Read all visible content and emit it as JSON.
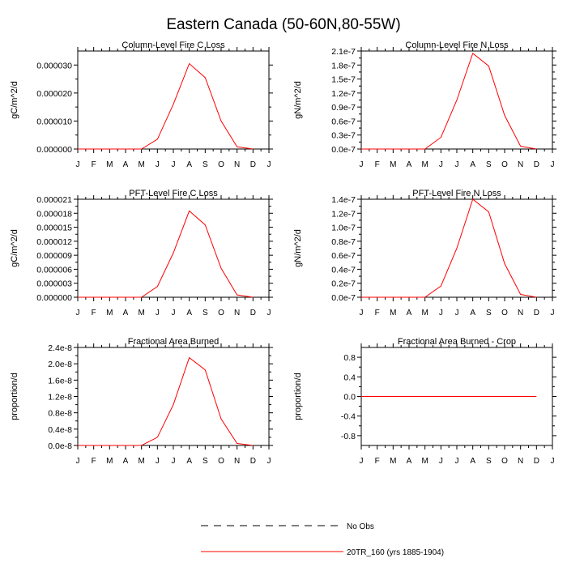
{
  "title": "Eastern Canada (50-60N,80-55W)",
  "months": [
    "J",
    "F",
    "M",
    "A",
    "M",
    "J",
    "J",
    "A",
    "S",
    "O",
    "N",
    "D",
    "J"
  ],
  "legend": [
    {
      "label": "No Obs",
      "style": "dashed",
      "color": "#000000"
    },
    {
      "label": "20TR_160 (yrs 1885-1904)",
      "style": "solid",
      "color": "#ff0000"
    }
  ],
  "colors": {
    "series": "#ff0000",
    "axis": "#000000"
  },
  "chart_data": [
    {
      "type": "line",
      "title": "Column-Level Fire C Loss",
      "ylabel": "gC/m^2/d",
      "ylim": [
        0,
        3.5e-05
      ],
      "yticks": [
        0,
        1e-05,
        2e-05,
        3e-05
      ],
      "ytick_labels": [
        "0.000000",
        "0.000010",
        "0.000020",
        "0.000030"
      ],
      "series": [
        {
          "name": "20TR_160 (yrs 1885-1904)",
          "values": [
            0,
            0,
            0,
            0,
            0,
            3.5e-06,
            1.6e-05,
            3.05e-05,
            2.55e-05,
            1e-05,
            8e-07,
            0
          ]
        }
      ]
    },
    {
      "type": "line",
      "title": "Column-Level Fire N Loss",
      "ylabel": "gN/m^2/d",
      "ylim": [
        0,
        2.1e-07
      ],
      "yticks": [
        0,
        3e-08,
        6e-08,
        9e-08,
        1.2e-07,
        1.5e-07,
        1.8e-07,
        2.1e-07
      ],
      "ytick_labels": [
        "0.0e-7",
        "0.3e-7",
        "0.6e-7",
        "0.9e-7",
        "1.2e-7",
        "1.5e-7",
        "1.8e-7",
        "2.1e-7"
      ],
      "series": [
        {
          "name": "20TR_160 (yrs 1885-1904)",
          "values": [
            0,
            0,
            0,
            0,
            0,
            2.5e-08,
            1.05e-07,
            2.05e-07,
            1.78e-07,
            7.2e-08,
            6e-09,
            0
          ]
        }
      ]
    },
    {
      "type": "line",
      "title": "PFT-Level Fire C Loss",
      "ylabel": "gC/m^2/d",
      "ylim": [
        0,
        2.1e-05
      ],
      "yticks": [
        0,
        3e-06,
        6e-06,
        9e-06,
        1.2e-05,
        1.5e-05,
        1.8e-05,
        2.1e-05
      ],
      "ytick_labels": [
        "0.000000",
        "0.000003",
        "0.000006",
        "0.000009",
        "0.000012",
        "0.000015",
        "0.000018",
        "0.000021"
      ],
      "series": [
        {
          "name": "20TR_160 (yrs 1885-1904)",
          "values": [
            0,
            0,
            0,
            0,
            0,
            2.3e-06,
            9.5e-06,
            1.85e-05,
            1.55e-05,
            6.2e-06,
            5e-07,
            0
          ]
        }
      ]
    },
    {
      "type": "line",
      "title": "PFT-Level Fire N Loss",
      "ylabel": "gN/m^2/d",
      "ylim": [
        0,
        1.4e-07
      ],
      "yticks": [
        0,
        2e-08,
        4e-08,
        6e-08,
        8e-08,
        1e-07,
        1.2e-07,
        1.4e-07
      ],
      "ytick_labels": [
        "0.0e-7",
        "0.2e-7",
        "0.4e-7",
        "0.6e-7",
        "0.8e-7",
        "1.0e-7",
        "1.2e-7",
        "1.4e-7"
      ],
      "series": [
        {
          "name": "20TR_160 (yrs 1885-1904)",
          "values": [
            0,
            0,
            0,
            0,
            0,
            1.6e-08,
            7e-08,
            1.4e-07,
            1.22e-07,
            4.8e-08,
            4e-09,
            0
          ]
        }
      ]
    },
    {
      "type": "line",
      "title": "Fractional Area Burned",
      "ylabel": "proportion/d",
      "ylim": [
        0,
        2.4e-08
      ],
      "yticks": [
        0,
        4e-09,
        8e-09,
        1.2e-08,
        1.6e-08,
        2e-08,
        2.4e-08
      ],
      "ytick_labels": [
        "0.0e-8",
        "0.4e-8",
        "0.8e-8",
        "1.2e-8",
        "1.6e-8",
        "2.0e-8",
        "2.4e-8"
      ],
      "series": [
        {
          "name": "20TR_160 (yrs 1885-1904)",
          "values": [
            0,
            0,
            0,
            0,
            0,
            2e-09,
            1e-08,
            2.15e-08,
            1.85e-08,
            6.5e-09,
            5e-10,
            0
          ]
        }
      ]
    },
    {
      "type": "line",
      "title": "Fractional Area Burned - Crop",
      "ylabel": "proportion/d",
      "ylim": [
        -1,
        1
      ],
      "yticks": [
        -0.8,
        -0.4,
        0,
        0.4,
        0.8
      ],
      "ytick_labels": [
        "-0.8",
        "-0.4",
        "0.0",
        "0.4",
        "0.8"
      ],
      "series": [
        {
          "name": "20TR_160 (yrs 1885-1904)",
          "values": [
            0,
            0,
            0,
            0,
            0,
            0,
            0,
            0,
            0,
            0,
            0,
            0
          ]
        }
      ]
    }
  ]
}
